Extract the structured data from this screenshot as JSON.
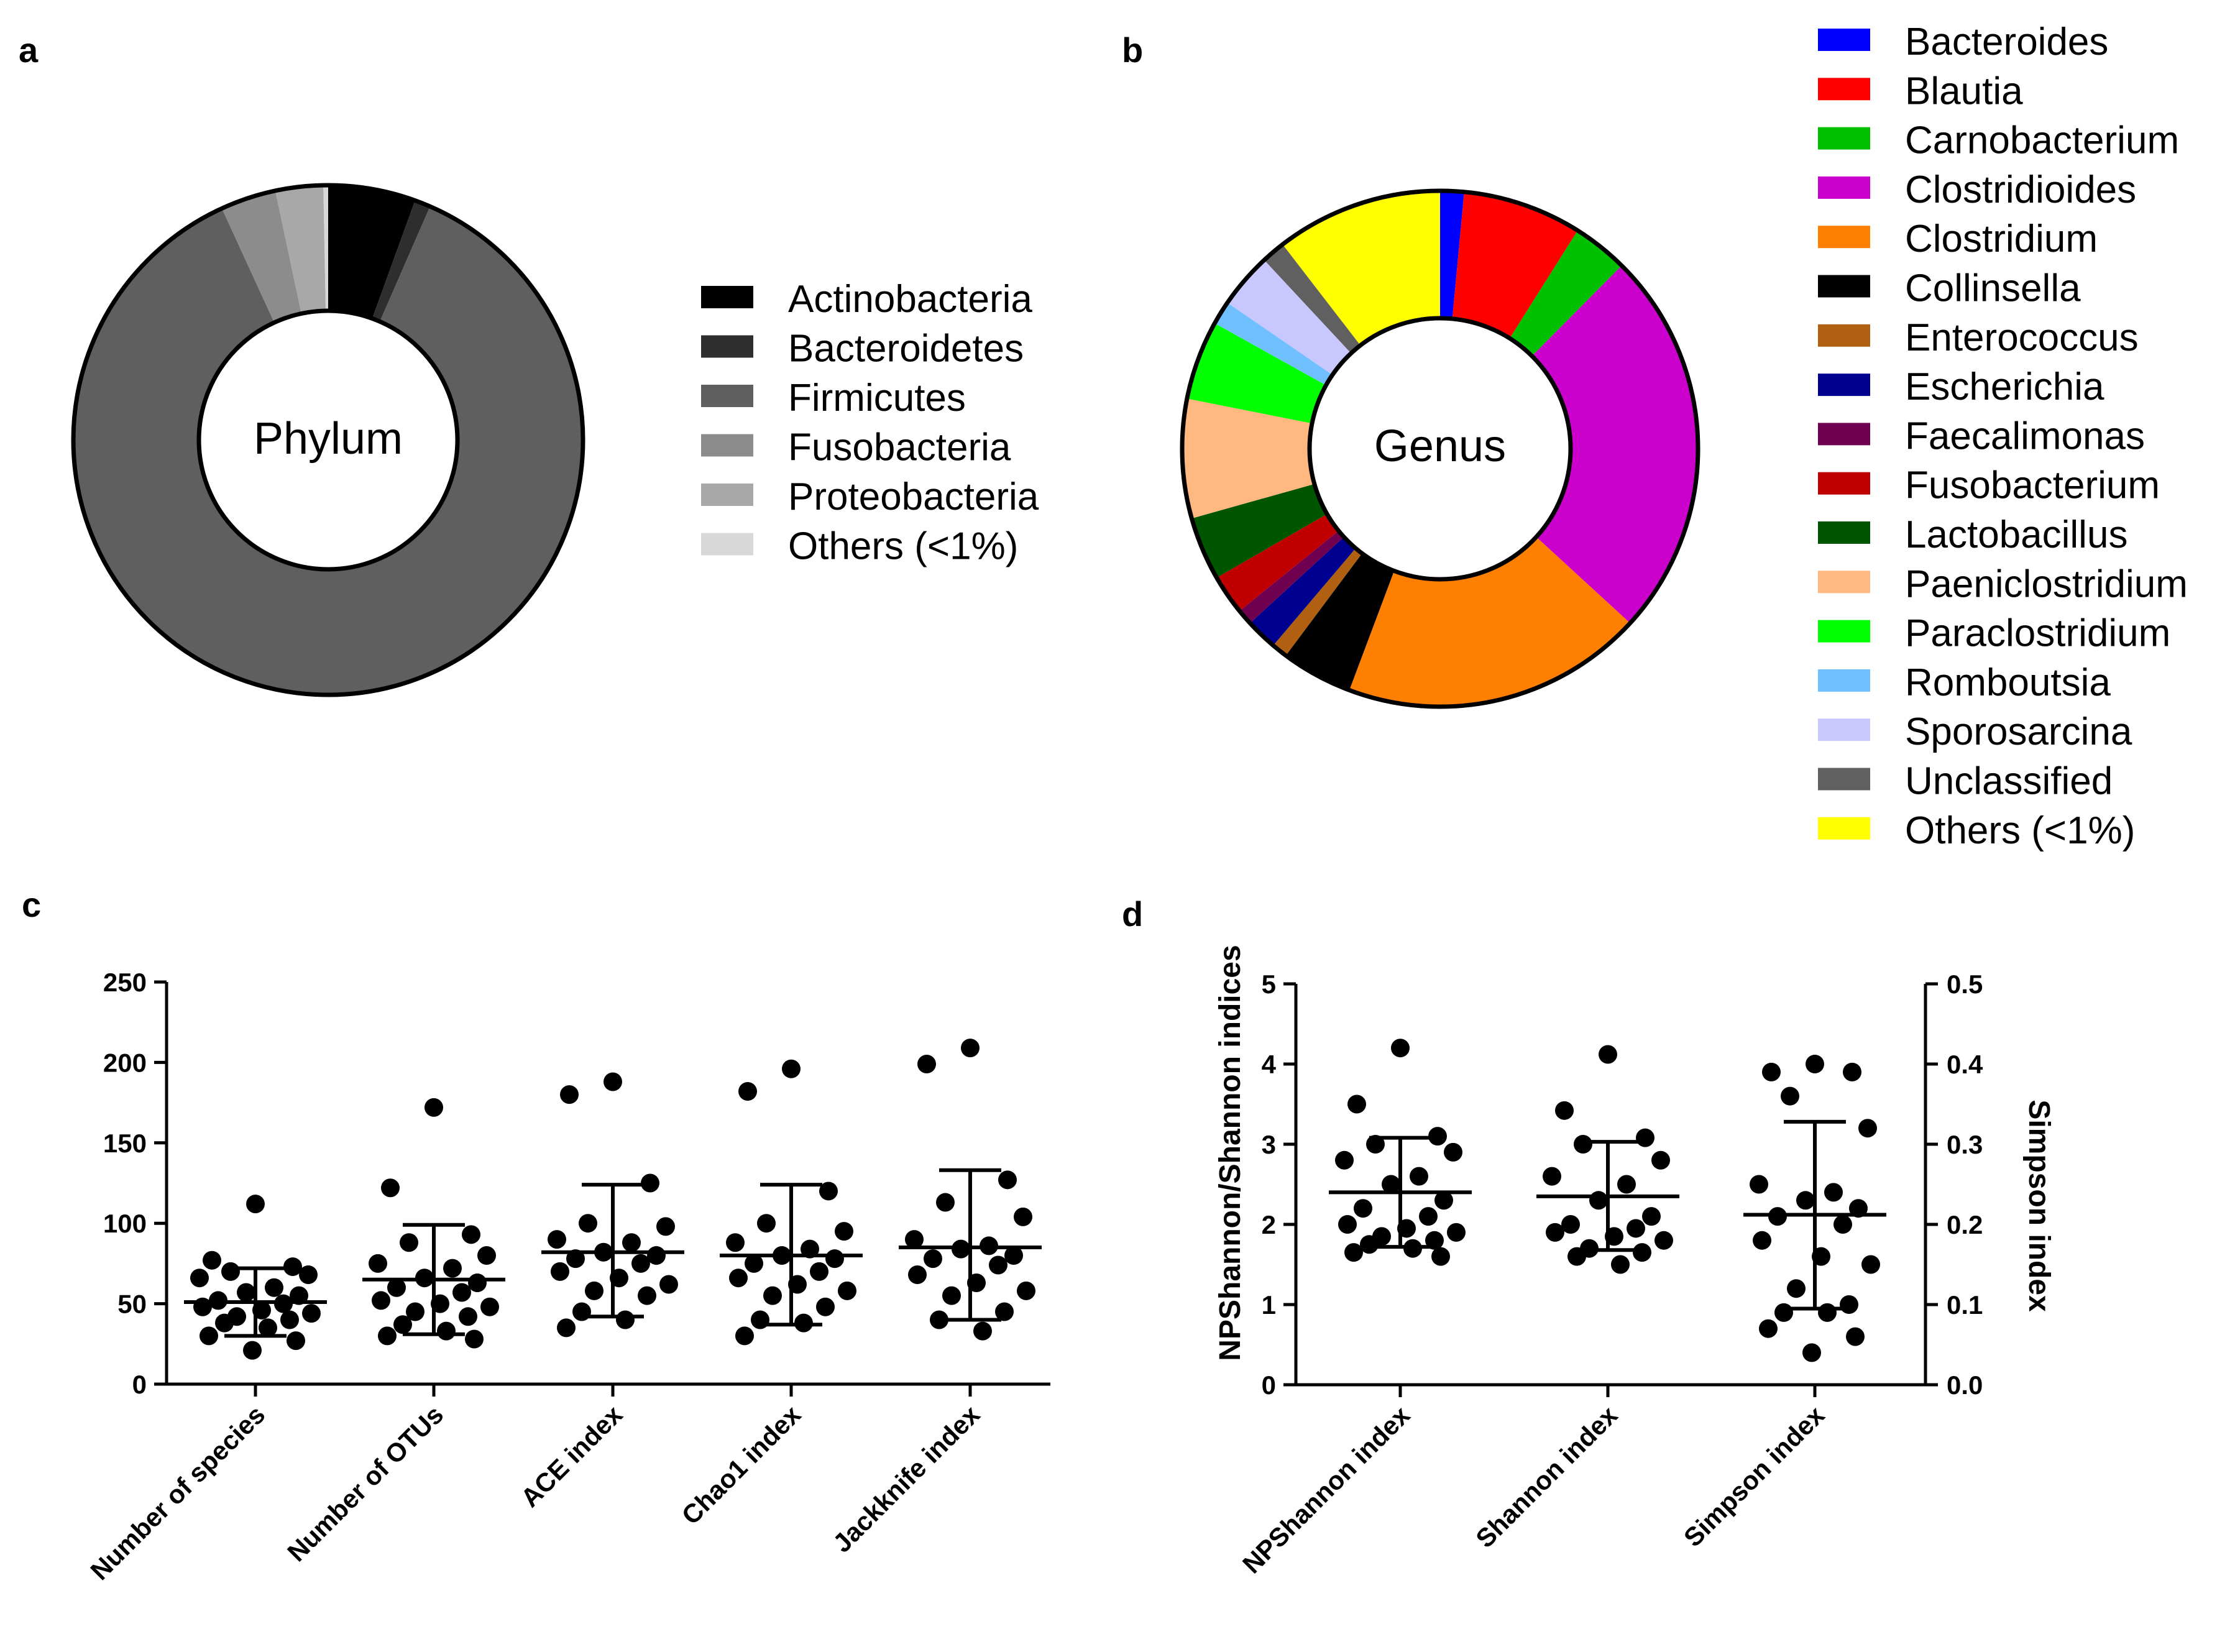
{
  "colors": {
    "axis": "#000000",
    "donut_outline": "#000000"
  },
  "panels": {
    "a": "a",
    "b": "b",
    "c": "c",
    "d": "d"
  },
  "chart_data": [
    {
      "id": "a",
      "type": "pie",
      "style": "donut",
      "center_label": "Phylum",
      "slices": [
        {
          "label": "Actinobacteria",
          "value": 5.5,
          "color": "#000000"
        },
        {
          "label": "Bacteroidetes",
          "value": 1.0,
          "color": "#2e2e2e"
        },
        {
          "label": "Firmicutes",
          "value": 86.0,
          "color": "#5f5f5f"
        },
        {
          "label": "Fusobacteria",
          "value": 3.5,
          "color": "#8c8c8c"
        },
        {
          "label": "Proteobacteria",
          "value": 3.0,
          "color": "#a8a8a8"
        },
        {
          "label": "Others (<1%)",
          "value": 0.3,
          "color": "#d8d8d8"
        }
      ]
    },
    {
      "id": "b",
      "type": "pie",
      "style": "donut",
      "center_label": "Genus",
      "slices": [
        {
          "label": "Bacteroides",
          "value": 1.5,
          "color": "#0000ff"
        },
        {
          "label": "Blautia",
          "value": 7.5,
          "color": "#ff0000"
        },
        {
          "label": "Carnobacterium",
          "value": 3.5,
          "color": "#00c000"
        },
        {
          "label": "Clostridioides",
          "value": 24.5,
          "color": "#cc00cc"
        },
        {
          "label": "Clostridium",
          "value": 19.0,
          "color": "#ff8000"
        },
        {
          "label": "Collinsella",
          "value": 4.5,
          "color": "#000000"
        },
        {
          "label": "Enterococcus",
          "value": 1.0,
          "color": "#b06010"
        },
        {
          "label": "Escherichia",
          "value": 2.0,
          "color": "#000090"
        },
        {
          "label": "Faecalimonas",
          "value": 1.0,
          "color": "#700050"
        },
        {
          "label": "Fusobacterium",
          "value": 2.5,
          "color": "#c00000"
        },
        {
          "label": "Lactobacillus",
          "value": 4.0,
          "color": "#005500"
        },
        {
          "label": "Paeniclostridium",
          "value": 7.5,
          "color": "#ffb880"
        },
        {
          "label": "Paraclostridium",
          "value": 5.0,
          "color": "#00ff00"
        },
        {
          "label": "Romboutsia",
          "value": 1.5,
          "color": "#70c0ff"
        },
        {
          "label": "Sporosarcina",
          "value": 3.5,
          "color": "#c8c8ff"
        },
        {
          "label": "Unclassified",
          "value": 1.5,
          "color": "#606060"
        },
        {
          "label": "Others (<1%)",
          "value": 10.5,
          "color": "#ffff00"
        }
      ]
    },
    {
      "id": "c",
      "type": "scatter",
      "style": "dot-plot with mean and SD",
      "ylim": [
        0,
        250
      ],
      "yticks": [
        "0",
        "50",
        "100",
        "150",
        "200",
        "250"
      ],
      "categories": [
        "Number of species",
        "Number of OTUs",
        "ACE index",
        "Chao1 index",
        "Jackknife index"
      ],
      "series": [
        {
          "name": "Number of species",
          "mean": 51,
          "sd_low": 30,
          "sd_high": 72,
          "values": [
            112,
            77,
            73,
            70,
            68,
            66,
            60,
            57,
            55,
            52,
            50,
            48,
            46,
            44,
            42,
            40,
            38,
            35,
            30,
            27,
            21
          ]
        },
        {
          "name": "Number of OTUs",
          "mean": 65,
          "sd_low": 31,
          "sd_high": 99,
          "values": [
            172,
            122,
            93,
            88,
            80,
            75,
            72,
            66,
            63,
            60,
            57,
            52,
            50,
            48,
            45,
            42,
            37,
            33,
            30,
            28
          ]
        },
        {
          "name": "ACE index",
          "mean": 82,
          "sd_low": 42,
          "sd_high": 124,
          "values": [
            188,
            180,
            125,
            100,
            98,
            90,
            88,
            82,
            80,
            78,
            75,
            70,
            66,
            62,
            58,
            55,
            45,
            40,
            35
          ]
        },
        {
          "name": "Chao1 index",
          "mean": 80,
          "sd_low": 37,
          "sd_high": 124,
          "values": [
            196,
            182,
            120,
            100,
            95,
            88,
            84,
            80,
            78,
            75,
            70,
            66,
            62,
            58,
            55,
            48,
            40,
            38,
            30
          ]
        },
        {
          "name": "Jackknife index",
          "mean": 85,
          "sd_low": 40,
          "sd_high": 133,
          "values": [
            209,
            199,
            127,
            113,
            104,
            90,
            86,
            84,
            80,
            78,
            74,
            68,
            63,
            58,
            55,
            45,
            40,
            33
          ]
        }
      ]
    },
    {
      "id": "d",
      "type": "scatter",
      "style": "dot-plot with mean and SD, dual y-axis",
      "ylabel": "NPShannon/Shannon indices",
      "y2label": "Simpson index",
      "ylim": [
        0,
        5
      ],
      "y2lim": [
        0,
        0.5
      ],
      "yticks": [
        "0",
        "1",
        "2",
        "3",
        "4",
        "5"
      ],
      "y2ticks": [
        "0.0",
        "0.1",
        "0.2",
        "0.3",
        "0.4",
        "0.5"
      ],
      "categories": [
        "NPShannon index",
        "Shannon index",
        "Simpson index"
      ],
      "series": [
        {
          "name": "NPShannon index",
          "axis": "left",
          "mean": 2.4,
          "sd_low": 1.72,
          "sd_high": 3.08,
          "values": [
            4.2,
            3.5,
            3.1,
            3.0,
            2.9,
            2.8,
            2.6,
            2.5,
            2.3,
            2.2,
            2.1,
            2.0,
            1.95,
            1.9,
            1.85,
            1.8,
            1.75,
            1.7,
            1.65,
            1.6
          ]
        },
        {
          "name": "Shannon index",
          "axis": "left",
          "mean": 2.35,
          "sd_low": 1.68,
          "sd_high": 3.03,
          "values": [
            4.12,
            3.42,
            3.08,
            3.0,
            2.8,
            2.6,
            2.5,
            2.3,
            2.1,
            2.0,
            1.95,
            1.9,
            1.85,
            1.8,
            1.7,
            1.65,
            1.6,
            1.5
          ]
        },
        {
          "name": "Simpson index",
          "axis": "right",
          "mean": 0.212,
          "sd_low": 0.095,
          "sd_high": 0.328,
          "values": [
            0.4,
            0.39,
            0.39,
            0.36,
            0.32,
            0.25,
            0.24,
            0.23,
            0.22,
            0.21,
            0.2,
            0.18,
            0.16,
            0.15,
            0.12,
            0.1,
            0.09,
            0.09,
            0.07,
            0.06,
            0.04
          ]
        }
      ]
    }
  ]
}
